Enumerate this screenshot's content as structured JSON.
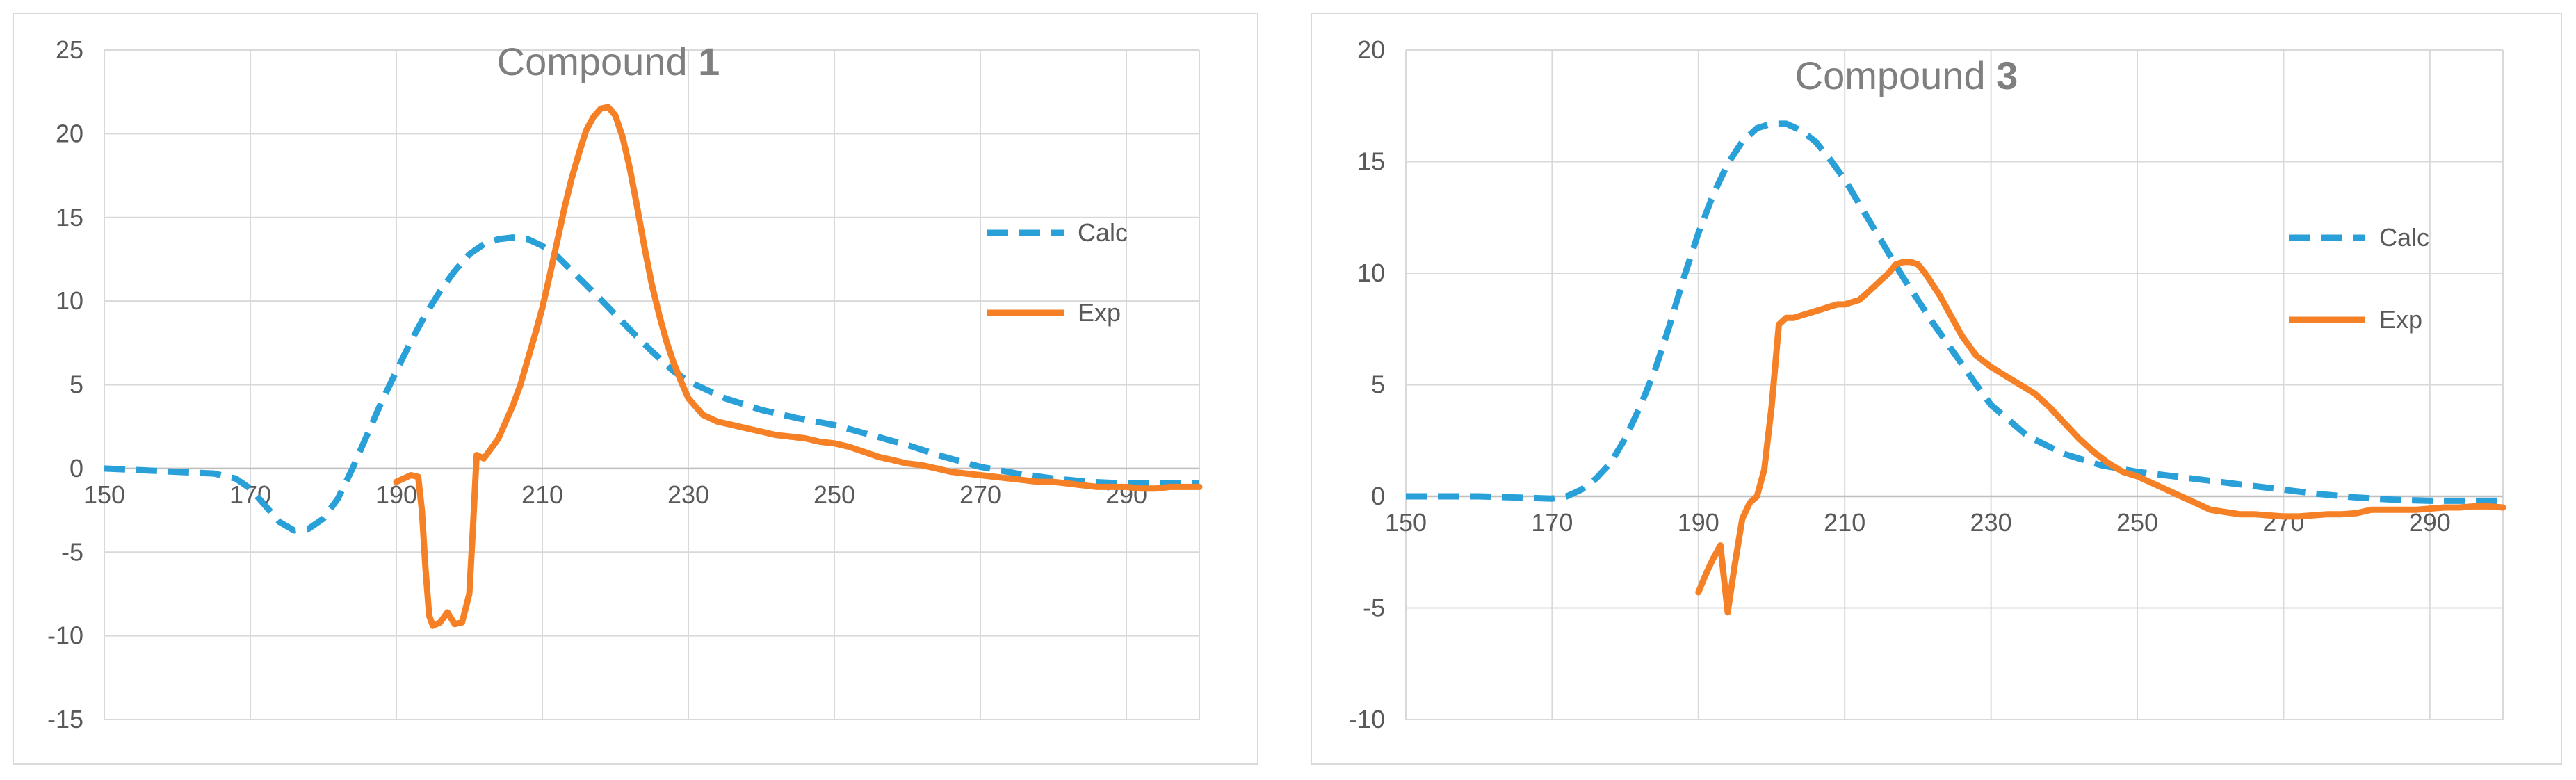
{
  "chart_data": [
    {
      "type": "line",
      "title": "Compound ",
      "title_number": "1",
      "xlim": [
        150,
        300
      ],
      "ylim": [
        -15,
        25
      ],
      "x_ticks": [
        150,
        170,
        190,
        210,
        230,
        250,
        270,
        290
      ],
      "y_ticks": [
        -15,
        -10,
        -5,
        0,
        5,
        10,
        15,
        20,
        25
      ],
      "grid": true,
      "legend_position": "right",
      "series": [
        {
          "name": "Calc",
          "color": "#29a0d8",
          "style": "dashed",
          "x": [
            150,
            155,
            160,
            165,
            168,
            170,
            172,
            174,
            176,
            178,
            180,
            182,
            184,
            186,
            188,
            190,
            192,
            194,
            196,
            198,
            200,
            202,
            204,
            206,
            208,
            210,
            212,
            215,
            218,
            220,
            222,
            225,
            228,
            230,
            235,
            240,
            245,
            250,
            255,
            260,
            265,
            270,
            275,
            280,
            285,
            290,
            295,
            300
          ],
          "y": [
            0,
            -0.1,
            -0.2,
            -0.3,
            -0.6,
            -1.2,
            -2.2,
            -3.2,
            -3.7,
            -3.6,
            -3.0,
            -1.8,
            0.0,
            2.0,
            4.0,
            5.8,
            7.6,
            9.2,
            10.6,
            11.8,
            12.8,
            13.4,
            13.7,
            13.8,
            13.7,
            13.3,
            12.7,
            11.4,
            10.1,
            9.2,
            8.3,
            7.0,
            5.8,
            5.2,
            4.2,
            3.5,
            3.0,
            2.6,
            2.0,
            1.4,
            0.7,
            0.1,
            -0.3,
            -0.6,
            -0.8,
            -0.9,
            -0.9,
            -0.9
          ]
        },
        {
          "name": "Exp",
          "color": "#f58025",
          "style": "solid",
          "x": [
            190,
            191,
            192,
            193,
            193.5,
            194,
            194.5,
            195,
            196,
            197,
            198,
            199,
            200,
            200.5,
            201,
            202,
            203,
            204,
            205,
            206,
            207,
            208,
            209,
            210,
            211,
            212,
            213,
            214,
            215,
            216,
            217,
            218,
            219,
            220,
            221,
            222,
            223,
            224,
            225,
            226,
            227,
            228,
            229,
            230,
            232,
            234,
            236,
            238,
            240,
            242,
            244,
            246,
            248,
            250,
            252,
            254,
            256,
            258,
            260,
            262,
            264,
            266,
            268,
            270,
            272,
            274,
            276,
            278,
            280,
            282,
            284,
            286,
            288,
            290,
            292,
            294,
            296,
            298,
            300
          ],
          "y": [
            -0.8,
            -0.6,
            -0.4,
            -0.5,
            -2.5,
            -6,
            -8.8,
            -9.4,
            -9.2,
            -8.6,
            -9.3,
            -9.2,
            -7.5,
            -3.5,
            0.8,
            0.6,
            1.2,
            1.8,
            2.8,
            3.8,
            5.0,
            6.5,
            8.0,
            9.6,
            11.5,
            13.5,
            15.5,
            17.3,
            18.8,
            20.2,
            21.0,
            21.5,
            21.6,
            21.1,
            19.8,
            17.9,
            15.6,
            13.2,
            11.0,
            9.2,
            7.6,
            6.3,
            5.2,
            4.2,
            3.2,
            2.8,
            2.6,
            2.4,
            2.2,
            2.0,
            1.9,
            1.8,
            1.6,
            1.5,
            1.3,
            1.0,
            0.7,
            0.5,
            0.3,
            0.2,
            0.0,
            -0.2,
            -0.3,
            -0.4,
            -0.5,
            -0.6,
            -0.7,
            -0.8,
            -0.8,
            -0.9,
            -1.0,
            -1.1,
            -1.1,
            -1.1,
            -1.2,
            -1.2,
            -1.1,
            -1.1,
            -1.1
          ]
        }
      ]
    },
    {
      "type": "line",
      "title": "Compound ",
      "title_number": "3",
      "xlim": [
        150,
        300
      ],
      "ylim": [
        -10,
        20
      ],
      "x_ticks": [
        150,
        170,
        190,
        210,
        230,
        250,
        270,
        290
      ],
      "y_ticks": [
        -10,
        -5,
        0,
        5,
        10,
        15,
        20
      ],
      "grid": true,
      "legend_position": "right",
      "series": [
        {
          "name": "Calc",
          "color": "#29a0d8",
          "style": "dashed",
          "x": [
            150,
            155,
            160,
            165,
            170,
            172,
            174,
            176,
            178,
            180,
            182,
            184,
            186,
            188,
            190,
            192,
            194,
            196,
            198,
            200,
            202,
            204,
            206,
            208,
            210,
            212,
            214,
            216,
            218,
            220,
            222,
            225,
            228,
            230,
            235,
            240,
            245,
            250,
            255,
            260,
            265,
            270,
            275,
            280,
            285,
            290,
            295,
            300
          ],
          "y": [
            0,
            0,
            0,
            -0.05,
            -0.1,
            0.0,
            0.3,
            0.8,
            1.5,
            2.6,
            4.0,
            5.6,
            7.6,
            9.8,
            11.8,
            13.5,
            14.9,
            15.9,
            16.5,
            16.7,
            16.7,
            16.4,
            15.9,
            15.1,
            14.2,
            13.1,
            12.0,
            10.9,
            9.8,
            8.8,
            7.8,
            6.4,
            5.0,
            4.1,
            2.7,
            1.9,
            1.4,
            1.1,
            0.9,
            0.7,
            0.5,
            0.3,
            0.1,
            -0.05,
            -0.15,
            -0.2,
            -0.2,
            -0.2
          ]
        },
        {
          "name": "Exp",
          "color": "#f58025",
          "style": "solid",
          "x": [
            190,
            191,
            192,
            193,
            194,
            195,
            196,
            197,
            198,
            199,
            200,
            201,
            202,
            203,
            204,
            205,
            206,
            207,
            208,
            209,
            210,
            211,
            212,
            213,
            214,
            215,
            216,
            217,
            218,
            219,
            220,
            221,
            222,
            223,
            224,
            225,
            226,
            228,
            230,
            232,
            234,
            236,
            238,
            240,
            242,
            244,
            246,
            248,
            250,
            252,
            254,
            256,
            258,
            260,
            262,
            264,
            266,
            268,
            270,
            272,
            274,
            276,
            278,
            280,
            282,
            284,
            286,
            288,
            290,
            292,
            294,
            296,
            298,
            300
          ],
          "y": [
            -4.3,
            -3.5,
            -2.8,
            -2.2,
            -5.2,
            -3.0,
            -1.0,
            -0.3,
            0.0,
            1.2,
            4.0,
            7.7,
            8.0,
            8.0,
            8.1,
            8.2,
            8.3,
            8.4,
            8.5,
            8.6,
            8.6,
            8.7,
            8.8,
            9.1,
            9.4,
            9.7,
            10.0,
            10.4,
            10.5,
            10.5,
            10.4,
            10.0,
            9.5,
            9.0,
            8.4,
            7.8,
            7.2,
            6.3,
            5.8,
            5.4,
            5.0,
            4.6,
            4.0,
            3.3,
            2.6,
            2.0,
            1.5,
            1.1,
            0.9,
            0.6,
            0.3,
            0.0,
            -0.3,
            -0.6,
            -0.7,
            -0.8,
            -0.8,
            -0.85,
            -0.9,
            -0.9,
            -0.85,
            -0.8,
            -0.8,
            -0.75,
            -0.6,
            -0.6,
            -0.6,
            -0.6,
            -0.55,
            -0.5,
            -0.5,
            -0.45,
            -0.45,
            -0.5
          ]
        }
      ]
    }
  ]
}
